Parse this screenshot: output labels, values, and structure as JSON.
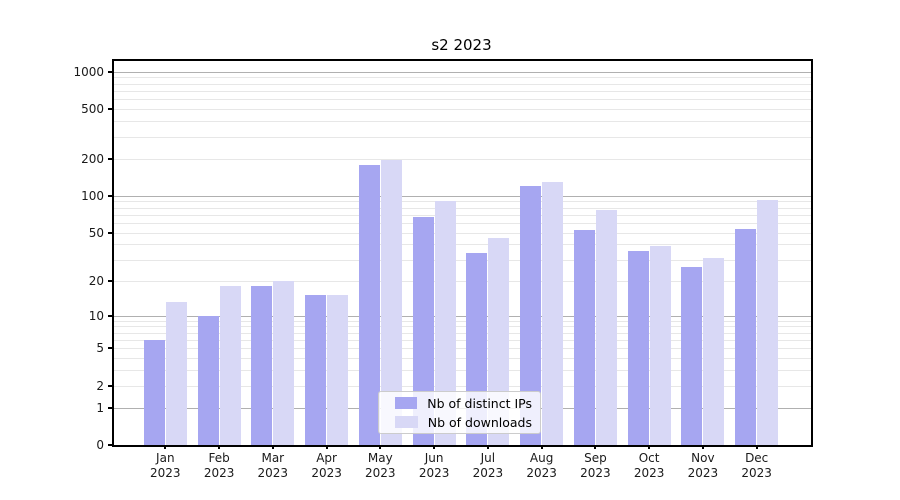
{
  "chart_data": {
    "type": "bar",
    "title": "s2 2023",
    "categories": [
      "Jan",
      "Feb",
      "Mar",
      "Apr",
      "May",
      "Jun",
      "Jul",
      "Aug",
      "Sep",
      "Oct",
      "Nov",
      "Dec"
    ],
    "x_year_line": "2023",
    "series": [
      {
        "name": "Nb of distinct IPs",
        "color": "#a6a6f1",
        "values": [
          6,
          10,
          18,
          15,
          178,
          67,
          34,
          120,
          53,
          35,
          26,
          54
        ]
      },
      {
        "name": "Nb of downloads",
        "color": "#d8d8f6",
        "values": [
          13,
          18,
          20,
          15,
          196,
          91,
          45,
          130,
          76,
          39,
          31,
          93
        ]
      }
    ],
    "yticks": [
      0,
      1,
      2,
      5,
      10,
      20,
      50,
      100,
      200,
      500,
      1000
    ],
    "ylim": [
      0,
      1220
    ],
    "yscale": "log1p",
    "xlabel": "",
    "ylabel": "",
    "grid": true,
    "legend_position": "lower center",
    "colors": {
      "grid_major": "#b0b0b0",
      "grid_minor": "#e7e7e7",
      "axis": "#000000",
      "text": "#1a1a1a",
      "background": "#ffffff"
    }
  }
}
